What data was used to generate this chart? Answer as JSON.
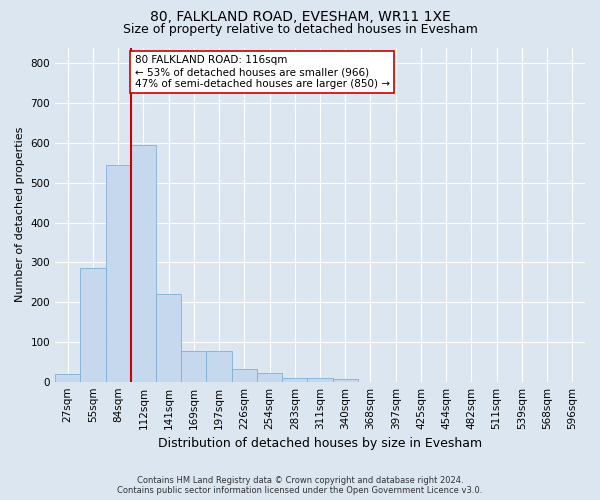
{
  "title1": "80, FALKLAND ROAD, EVESHAM, WR11 1XE",
  "title2": "Size of property relative to detached houses in Evesham",
  "xlabel": "Distribution of detached houses by size in Evesham",
  "ylabel": "Number of detached properties",
  "footnote": "Contains HM Land Registry data © Crown copyright and database right 2024.\nContains public sector information licensed under the Open Government Licence v3.0.",
  "bin_labels": [
    "27sqm",
    "55sqm",
    "84sqm",
    "112sqm",
    "141sqm",
    "169sqm",
    "197sqm",
    "226sqm",
    "254sqm",
    "283sqm",
    "311sqm",
    "340sqm",
    "368sqm",
    "397sqm",
    "425sqm",
    "454sqm",
    "482sqm",
    "511sqm",
    "539sqm",
    "568sqm",
    "596sqm"
  ],
  "bar_values": [
    20,
    285,
    545,
    595,
    220,
    78,
    78,
    33,
    22,
    10,
    9,
    7,
    0,
    0,
    0,
    0,
    0,
    0,
    0,
    0,
    0
  ],
  "bar_color": "#c5d8ed",
  "bar_edgecolor": "#7fb0d5",
  "vline_x_index": 3,
  "vline_color": "#cc0000",
  "annotation_text": "80 FALKLAND ROAD: 116sqm\n← 53% of detached houses are smaller (966)\n47% of semi-detached houses are larger (850) →",
  "annotation_box_color": "#ffffff",
  "annotation_box_edgecolor": "#cc0000",
  "ylim": [
    0,
    840
  ],
  "yticks": [
    0,
    100,
    200,
    300,
    400,
    500,
    600,
    700,
    800
  ],
  "background_color": "#dce6f0",
  "plot_background": "#dce6f0",
  "grid_color": "#ffffff",
  "title1_fontsize": 10,
  "title2_fontsize": 9,
  "xlabel_fontsize": 9,
  "ylabel_fontsize": 8,
  "tick_fontsize": 7.5,
  "annot_fontsize": 7.5
}
